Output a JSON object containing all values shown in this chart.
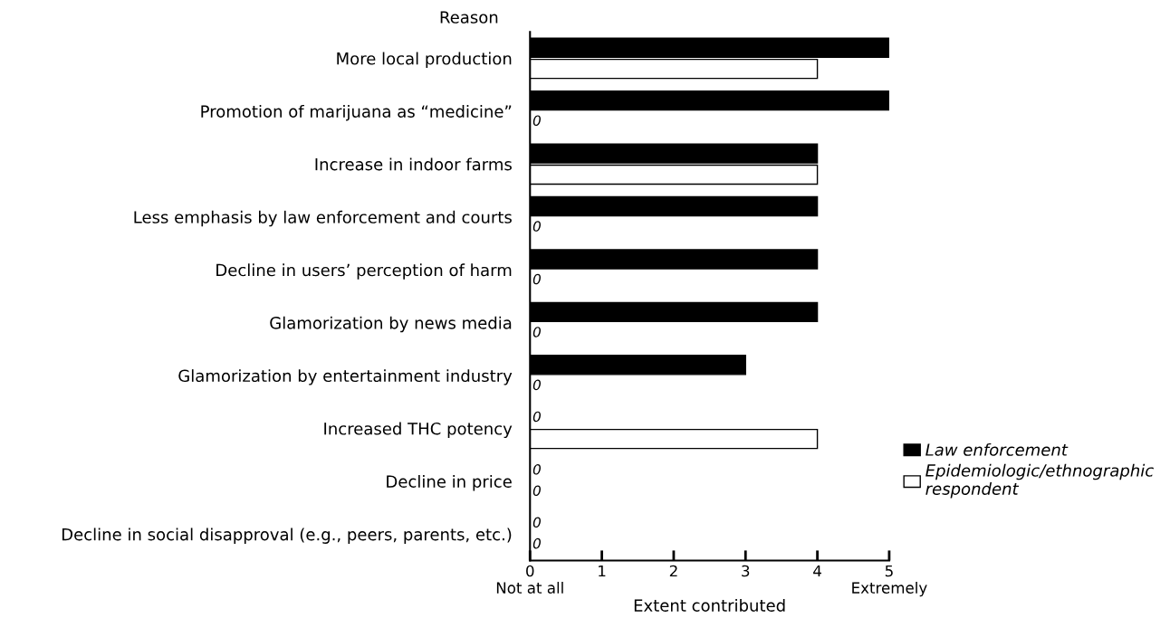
{
  "chart_data": {
    "type": "bar",
    "orientation": "horizontal",
    "ylabel": "Reason",
    "xlabel": "Extent contributed",
    "categories": [
      "More local production",
      "Promotion of marijuana as “medicine”",
      "Increase in indoor farms",
      "Less emphasis by law enforcement and courts",
      "Decline in users’ perception of harm",
      "Glamorization by news media",
      "Glamorization by entertainment industry",
      "Increased THC potency",
      "Decline in price",
      "Decline in social disapproval (e.g., peers, parents, etc.)"
    ],
    "series": [
      {
        "name": "Law enforcement",
        "color": "#000000",
        "values": [
          5,
          5,
          4,
          4,
          4,
          4,
          3,
          0,
          0,
          0
        ],
        "value_labels": [
          null,
          null,
          null,
          null,
          null,
          null,
          null,
          "0",
          "0",
          "0"
        ]
      },
      {
        "name": "Epidemiologic/ethnographic\nrespondent",
        "color": "#ffffff",
        "values": [
          4,
          0,
          4,
          0,
          0,
          0,
          0,
          4,
          0,
          0
        ],
        "value_labels": [
          null,
          "0",
          null,
          "0",
          "0",
          "0",
          "0",
          null,
          "0",
          "0"
        ]
      }
    ],
    "xlim": [
      0,
      5
    ],
    "xticks": [
      {
        "value": 0,
        "label": "0\nNot at all"
      },
      1,
      2,
      3,
      4,
      {
        "value": 5,
        "label": "5\nExtremely"
      }
    ],
    "grid": false,
    "legend": "right"
  }
}
